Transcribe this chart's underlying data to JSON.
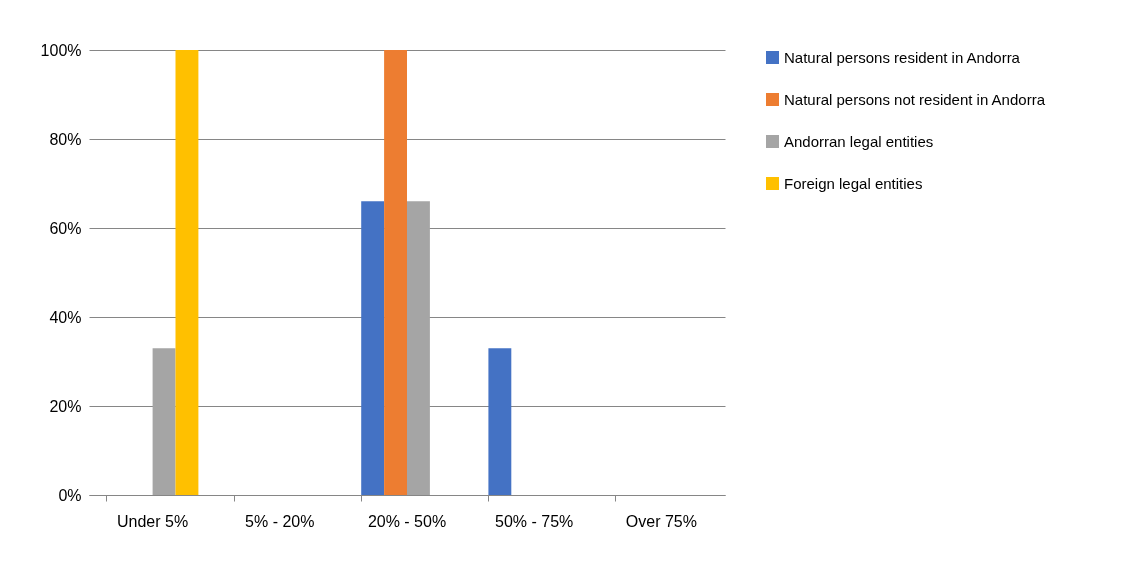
{
  "chart_data": {
    "type": "bar",
    "categories": [
      "Under 5%",
      "5% - 20%",
      "20% - 50%",
      "50% - 75%",
      "Over 75%"
    ],
    "series": [
      {
        "name": "Natural persons resident in Andorra",
        "color": "#4472c4",
        "values": [
          0,
          0,
          66,
          33,
          0
        ]
      },
      {
        "name": "Natural persons not resident in Andorra",
        "color": "#ed7d31",
        "values": [
          0,
          0,
          100,
          0,
          0
        ]
      },
      {
        "name": "Andorran legal entities",
        "color": "#a5a5a5",
        "values": [
          33,
          0,
          66,
          0,
          0
        ]
      },
      {
        "name": "Foreign legal entities",
        "color": "#ffc000",
        "values": [
          100,
          0,
          0,
          0,
          0
        ]
      }
    ],
    "ylim": [
      0,
      100
    ],
    "yticks": [
      {
        "value": 0,
        "label": "0%"
      },
      {
        "value": 20,
        "label": "20%"
      },
      {
        "value": 40,
        "label": "40%"
      },
      {
        "value": 60,
        "label": "60%"
      },
      {
        "value": 80,
        "label": "80%"
      },
      {
        "value": 100,
        "label": "100%"
      }
    ],
    "grid": "y",
    "legend": "right"
  }
}
